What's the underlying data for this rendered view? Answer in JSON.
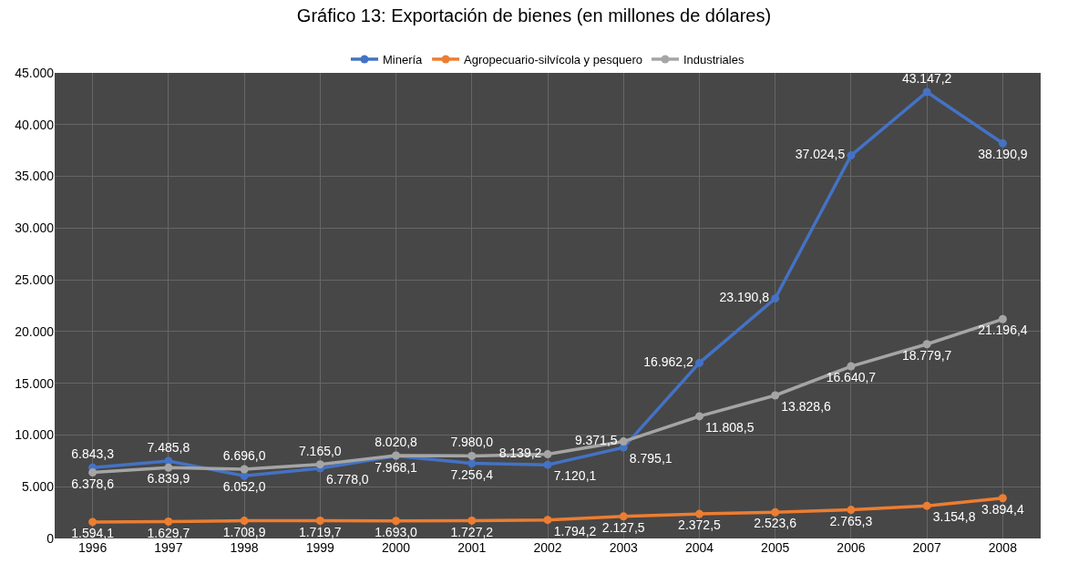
{
  "chart_data": {
    "type": "line",
    "title": "Gráfico 13: Exportación de bienes (en millones de dólares)",
    "categories": [
      "1996",
      "1997",
      "1998",
      "1999",
      "2000",
      "2001",
      "2002",
      "2003",
      "2004",
      "2005",
      "2006",
      "2007",
      "2008"
    ],
    "series": [
      {
        "name": "Minería",
        "color": "#4472c4",
        "values": [
          6843.3,
          7485.8,
          6052.0,
          6778.0,
          7968.1,
          7256.4,
          7120.1,
          8795.1,
          16962.2,
          23190.8,
          37024.5,
          43147.2,
          38190.9
        ],
        "value_labels": [
          "6.843,3",
          "7.485,8",
          "6.052,0",
          "6.778,0",
          "7.968,1",
          "7.256,4",
          "7.120,1",
          "8.795,1",
          "16.962,2",
          "23.190,8",
          "37.024,5",
          "43.147,2",
          "38.190,9"
        ]
      },
      {
        "name": "Agropecuario-silvícola y pesquero",
        "color": "#ed7d31",
        "values": [
          1594.1,
          1629.7,
          1708.9,
          1719.7,
          1693.0,
          1727.2,
          1794.2,
          2127.5,
          2372.5,
          2523.6,
          2765.3,
          3154.8,
          3894.4
        ],
        "value_labels": [
          "1.594,1",
          "1.629,7",
          "1.708,9",
          "1.719,7",
          "1.693,0",
          "1.727,2",
          "1.794,2",
          "2.127,5",
          "2.372,5",
          "2.523,6",
          "2.765,3",
          "3.154,8",
          "3.894,4"
        ]
      },
      {
        "name": "Industriales",
        "color": "#a5a5a5",
        "values": [
          6378.6,
          6839.9,
          6696.0,
          7165.0,
          8020.8,
          7980.0,
          8139.2,
          9371.5,
          11808.5,
          13828.6,
          16640.7,
          18779.7,
          21196.4
        ],
        "value_labels": [
          "6.378,6",
          "6.839,9",
          "6.696,0",
          "7.165,0",
          "8.020,8",
          "7.980,0",
          "8.139,2",
          "9.371,5",
          "11.808,5",
          "13.828,6",
          "16.640,7",
          "18.779,7",
          "21.196,4"
        ]
      }
    ],
    "ylim": [
      0,
      45000
    ],
    "yticks": [
      0,
      {
        "value": 5000,
        "label": "5.000"
      },
      {
        "value": 10000,
        "label": "10.000"
      },
      {
        "value": 15000,
        "label": "15.000"
      },
      {
        "value": 20000,
        "label": "20.000"
      },
      {
        "value": 25000,
        "label": "25.000"
      },
      {
        "value": 30000,
        "label": "30.000"
      },
      {
        "value": 35000,
        "label": "35.000"
      },
      {
        "value": 40000,
        "label": "40.000"
      },
      {
        "value": 45000,
        "label": "45.000"
      }
    ],
    "grid": true,
    "legend": "top",
    "marker": "circle",
    "line_style": "solid"
  }
}
